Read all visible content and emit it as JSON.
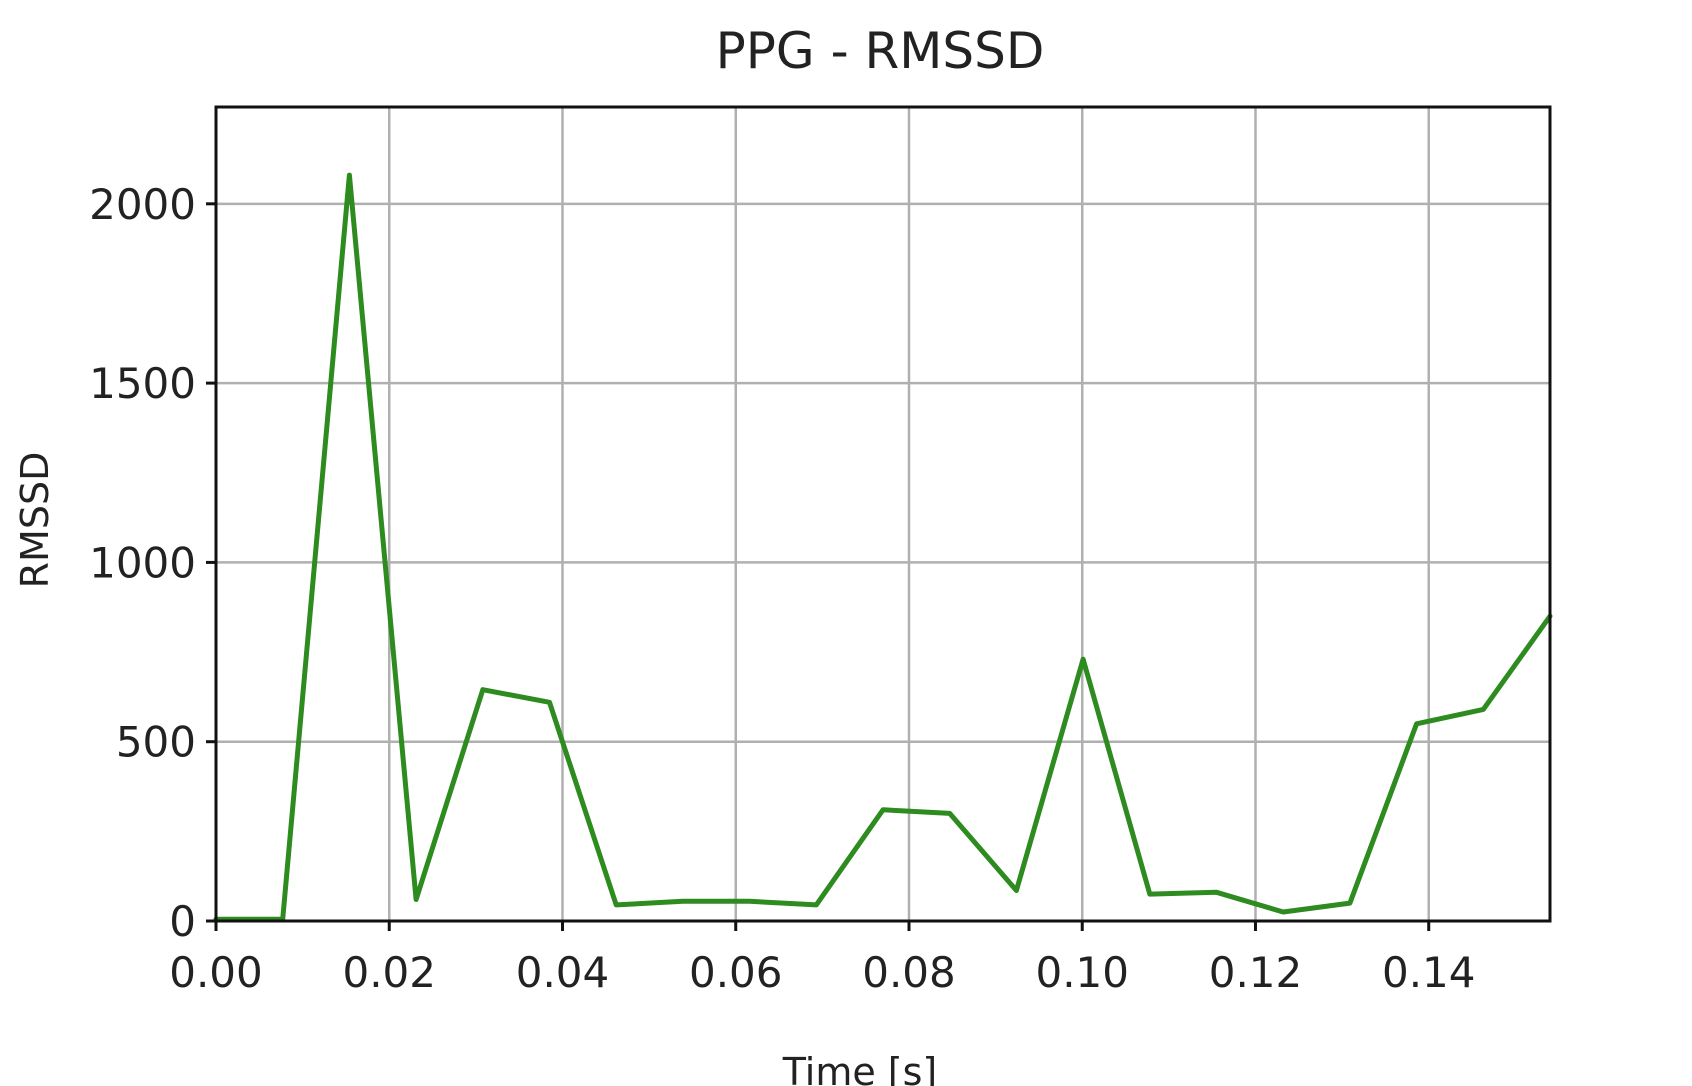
{
  "chart_data": {
    "type": "line",
    "title": "PPG - RMSSD",
    "xlabel": "Time [s]",
    "ylabel": "RMSSD",
    "xlim": [
      0.0,
      0.154
    ],
    "ylim": [
      0,
      2270
    ],
    "xticks": [
      0.0,
      0.02,
      0.04,
      0.06,
      0.08,
      0.1,
      0.12,
      0.14
    ],
    "xtick_labels": [
      "0.00",
      "0.02",
      "0.04",
      "0.06",
      "0.08",
      "0.10",
      "0.12",
      "0.14"
    ],
    "yticks": [
      0,
      500,
      1000,
      1500,
      2000
    ],
    "ytick_labels": [
      "0",
      "500",
      "1000",
      "1500",
      "2000"
    ],
    "grid": true,
    "colors": {
      "series": "#2e8b1f"
    },
    "series": [
      {
        "x": [
          0.0,
          0.0077,
          0.0154,
          0.0231,
          0.0308,
          0.0385,
          0.0462,
          0.0539,
          0.0616,
          0.0693,
          0.077,
          0.0847,
          0.0924,
          0.1001,
          0.1078,
          0.1155,
          0.1232,
          0.1309,
          0.1386,
          0.1463,
          0.154
        ],
        "values": [
          5,
          5,
          2080,
          60,
          645,
          610,
          45,
          55,
          55,
          45,
          310,
          300,
          85,
          730,
          75,
          80,
          25,
          50,
          550,
          590,
          850
        ]
      }
    ]
  }
}
